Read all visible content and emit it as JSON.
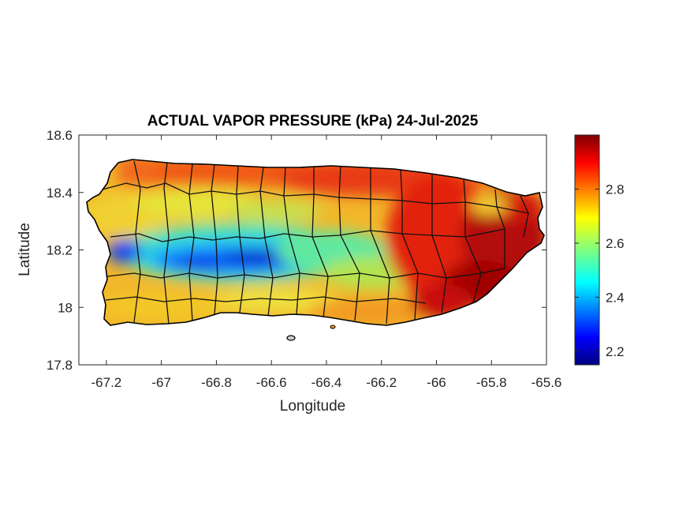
{
  "map": {
    "title": "ACTUAL VAPOR PRESSURE (kPa) 24-Jul-2025",
    "xlabel": "Longitude",
    "ylabel": "Latitude",
    "region": "Puerto Rico",
    "xlim": [
      -67.3,
      -65.6
    ],
    "ylim": [
      17.8,
      18.6
    ],
    "xticks": [
      -67.2,
      -67,
      -66.8,
      -66.6,
      -66.4,
      -66.2,
      -66,
      -65.8,
      -65.6
    ],
    "xtick_labels": [
      "-67.2",
      "-67",
      "-66.8",
      "-66.6",
      "-66.4",
      "-66.2",
      "-66",
      "-65.8",
      "-65.6"
    ],
    "yticks": [
      17.8,
      18,
      18.2,
      18.4,
      18.6
    ],
    "ytick_labels": [
      "17.8",
      "18",
      "18.2",
      "18.4",
      "18.6"
    ],
    "colorbar": {
      "colormap": "jet",
      "range": [
        2.15,
        3.0
      ],
      "ticks": [
        2.2,
        2.4,
        2.6,
        2.8
      ],
      "tick_labels": [
        "2.2",
        "2.4",
        "2.6",
        "2.8"
      ]
    },
    "field_summary": [
      {
        "area": "west-central interior",
        "level": "low (~2.2-2.4 kPa)"
      },
      {
        "area": "north coast",
        "level": "high (~2.8-2.9 kPa)"
      },
      {
        "area": "east and southeast",
        "level": "highest (~2.95-3.0 kPa)"
      },
      {
        "area": "south coast",
        "level": "medium-high (~2.7-2.8 kPa)"
      }
    ]
  }
}
